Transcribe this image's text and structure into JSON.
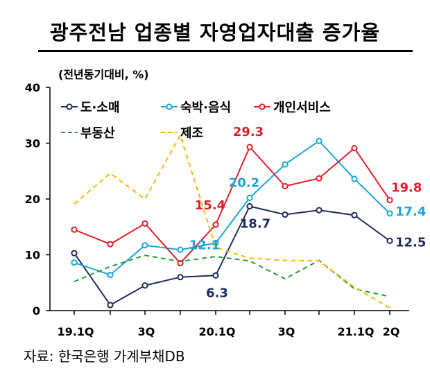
{
  "title": "광주전남 업종별 자영업자대출 증가율",
  "unit_label": "(전년동기대비, %)",
  "source": "자료: 한국은행 가계부채DB",
  "chart_data": {
    "type": "line",
    "title": "광주전남 업종별 자영업자대출 증가율",
    "ylabel": "(전년동기대비, %)",
    "xlabel": "",
    "ylim": [
      0,
      40
    ],
    "yticks": [
      0,
      10,
      20,
      30,
      40
    ],
    "x": [
      "19.1Q",
      "19.2Q",
      "19.3Q",
      "19.4Q",
      "20.1Q",
      "20.2Q",
      "20.3Q",
      "20.4Q",
      "21.1Q",
      "21.2Q"
    ],
    "xtick_labels": [
      "19.1Q",
      "",
      "3Q",
      "",
      "20.1Q",
      "",
      "3Q",
      "",
      "21.1Q",
      "2Q"
    ],
    "grid": false,
    "legend_position": "top-left",
    "series": [
      {
        "name": "도·소매",
        "color": "#1f2d5c",
        "style": "solid-marker",
        "values": [
          10.3,
          1.0,
          4.5,
          6.0,
          6.3,
          18.7,
          17.2,
          18.0,
          17.1,
          12.5
        ]
      },
      {
        "name": "숙박·음식",
        "color": "#1aa7d6",
        "style": "solid-marker",
        "values": [
          8.6,
          6.4,
          11.7,
          10.9,
          12.1,
          20.2,
          26.2,
          30.4,
          23.6,
          17.4
        ]
      },
      {
        "name": "개인서비스",
        "color": "#e0202a",
        "style": "solid-marker",
        "values": [
          14.5,
          11.9,
          15.6,
          8.5,
          15.4,
          29.3,
          22.3,
          23.7,
          29.1,
          19.8
        ]
      },
      {
        "name": "부동산",
        "color": "#2a9a3c",
        "style": "dashed",
        "values": [
          5.2,
          7.9,
          9.9,
          8.8,
          9.7,
          8.9,
          5.7,
          9.0,
          3.9,
          2.5
        ]
      },
      {
        "name": "제조",
        "color": "#f5b800",
        "style": "dashed",
        "values": [
          19.1,
          24.6,
          20.0,
          31.4,
          11.3,
          9.4,
          9.0,
          8.9,
          4.2,
          0.5
        ]
      }
    ],
    "annotations": [
      {
        "text": "15.4",
        "series": "개인서비스",
        "index": 4,
        "color": "#e0202a"
      },
      {
        "text": "29.3",
        "series": "개인서비스",
        "index": 5,
        "color": "#e0202a"
      },
      {
        "text": "19.8",
        "series": "개인서비스",
        "index": 9,
        "color": "#e0202a"
      },
      {
        "text": "12.1",
        "series": "숙박·음식",
        "index": 4,
        "color": "#1aa7d6"
      },
      {
        "text": "20.2",
        "series": "숙박·음식",
        "index": 5,
        "color": "#1aa7d6"
      },
      {
        "text": "17.4",
        "series": "숙박·음식",
        "index": 9,
        "color": "#1aa7d6"
      },
      {
        "text": "6.3",
        "series": "도·소매",
        "index": 4,
        "color": "#1f2d5c"
      },
      {
        "text": "18.7",
        "series": "도·소매",
        "index": 5,
        "color": "#1f2d5c"
      },
      {
        "text": "12.5",
        "series": "도·소매",
        "index": 9,
        "color": "#1f2d5c"
      }
    ]
  }
}
